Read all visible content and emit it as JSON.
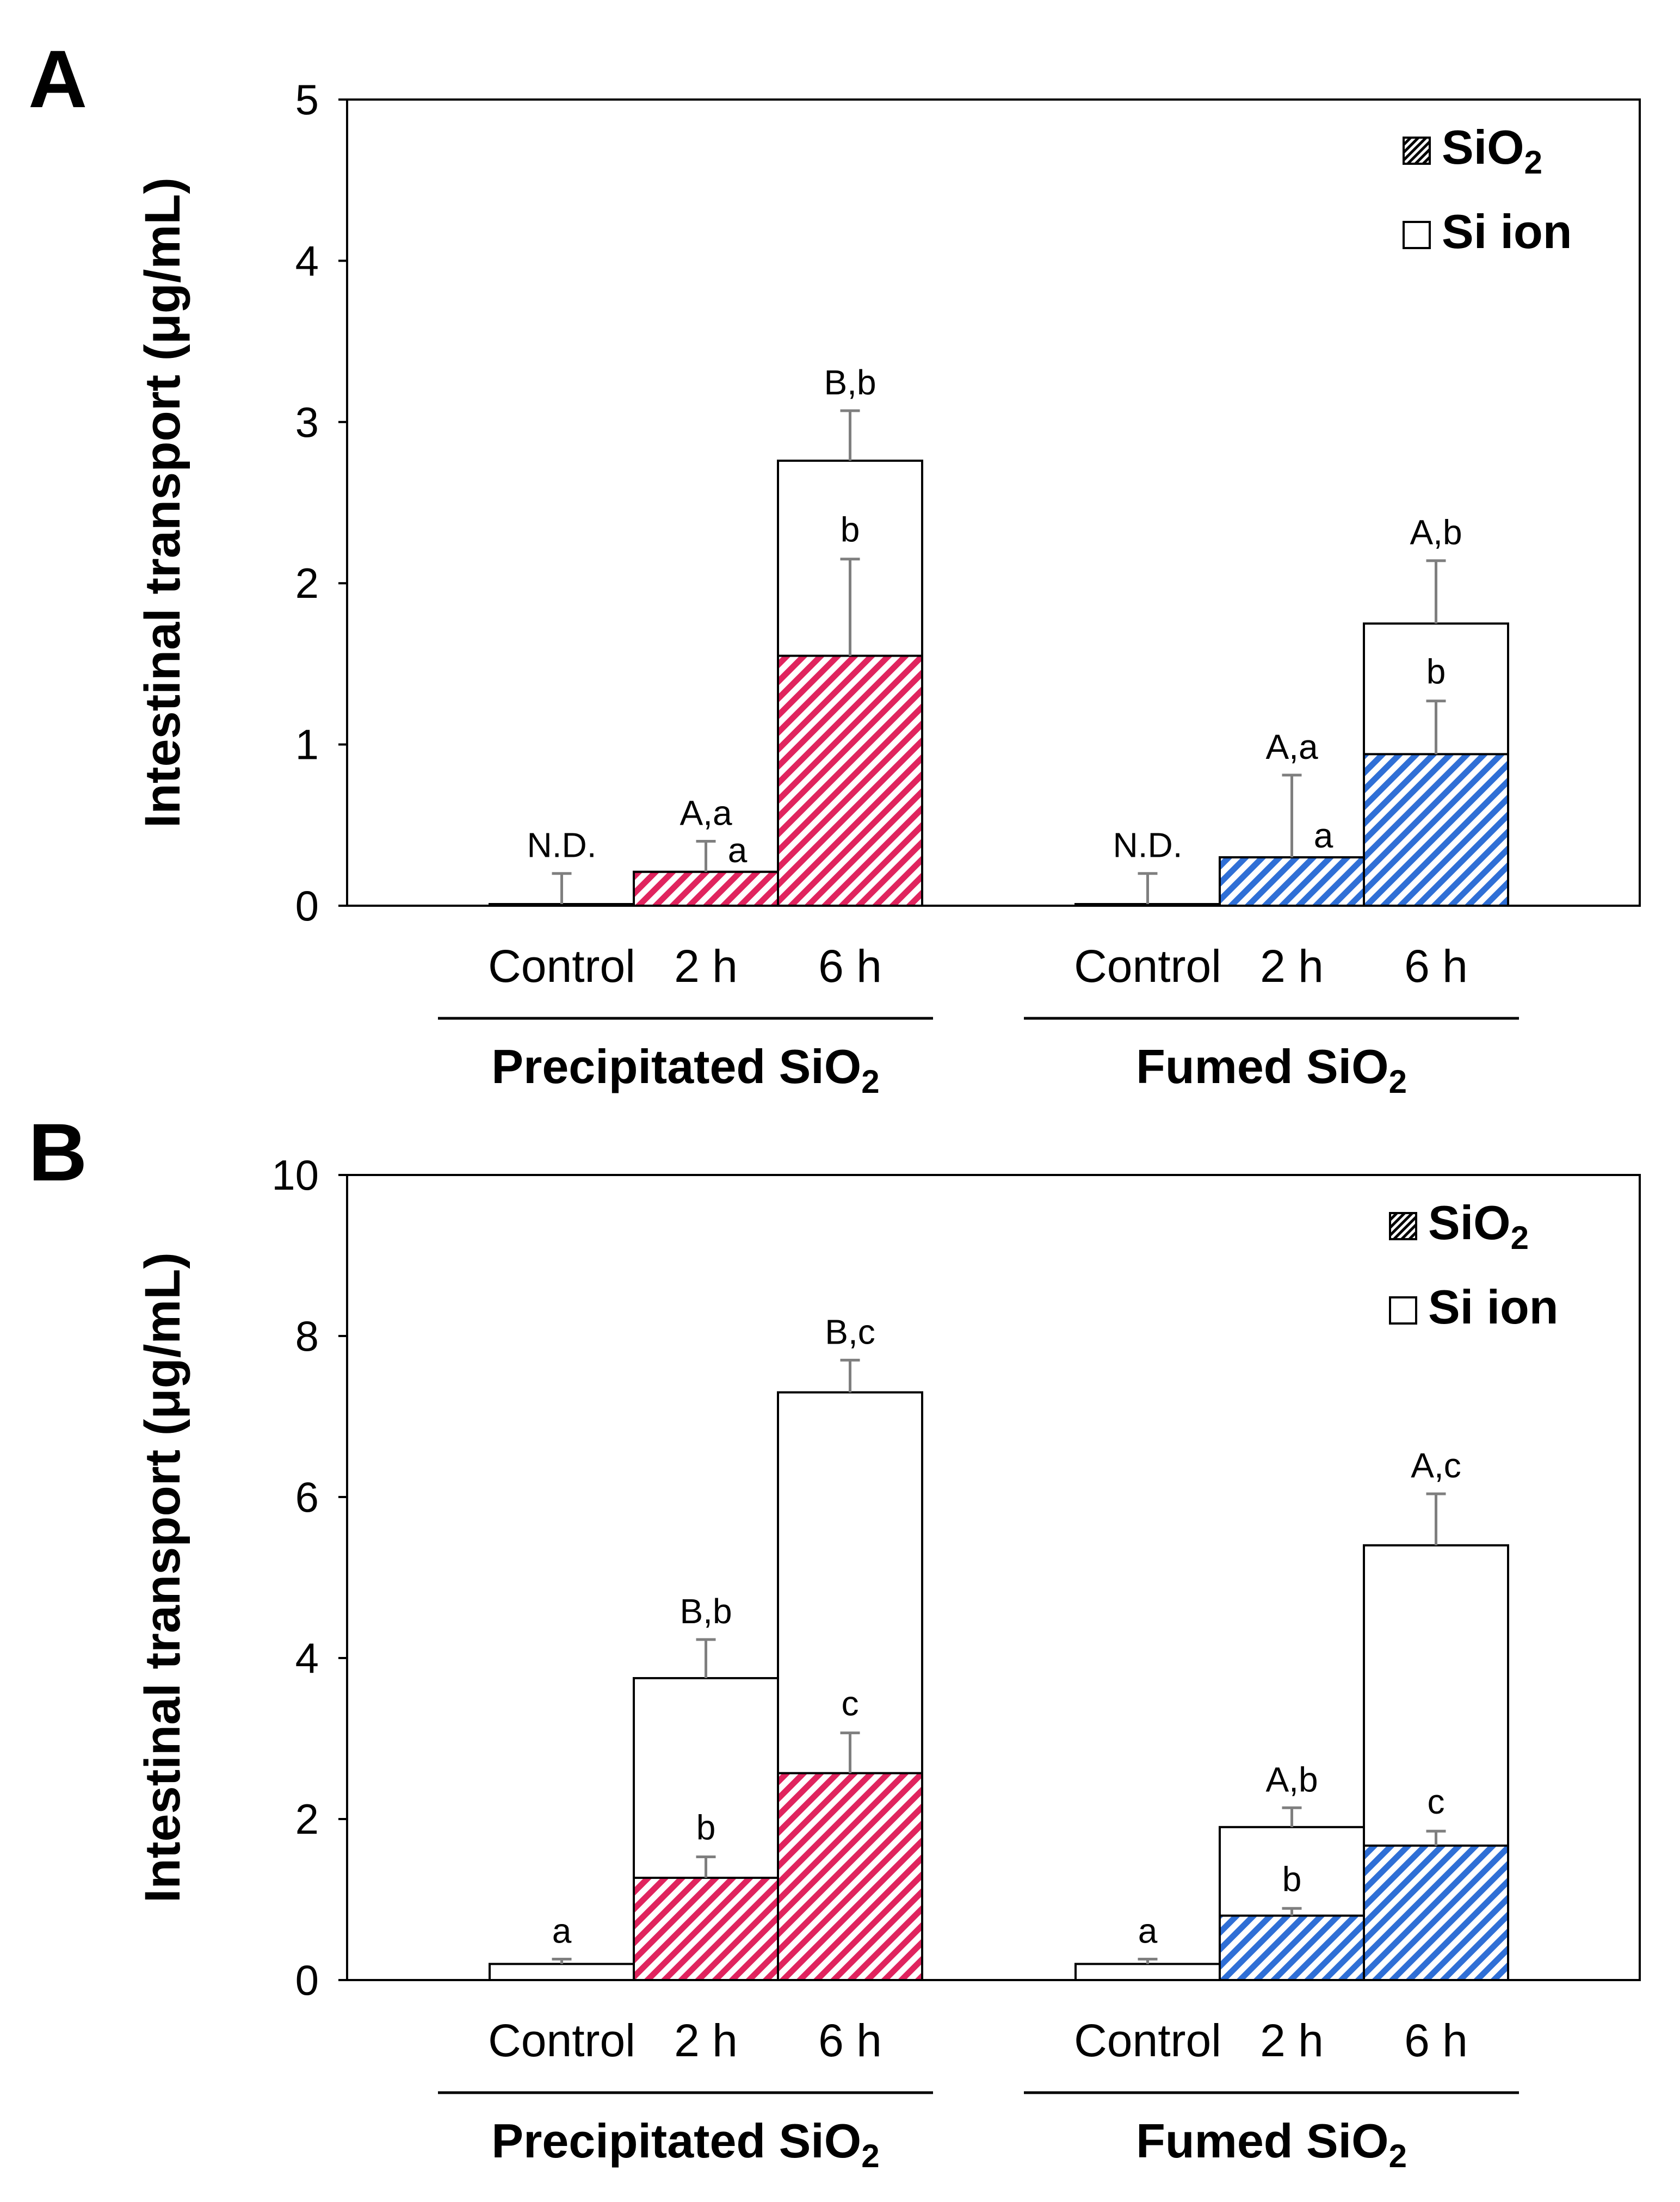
{
  "colors": {
    "precipitated": "#e0245e",
    "fumed": "#2f6fd6",
    "hatch_bg": "#ffffff",
    "axis": "#000000",
    "error_bar": "#7f7f7f"
  },
  "chart_data": [
    {
      "panel_label": "A",
      "type": "bar",
      "stacked": true,
      "ylabel": "Intestinal transport (μg/mL)",
      "ylim": [
        0,
        5
      ],
      "yticks": [
        "0",
        "1",
        "2",
        "3",
        "4",
        "5"
      ],
      "legend": {
        "position": "top-right",
        "items": [
          {
            "pattern": "hatched",
            "label": "SiO",
            "sub": "2"
          },
          {
            "pattern": "open",
            "label": "Si ion",
            "sub": ""
          }
        ]
      },
      "groups": [
        {
          "name": "Precipitated SiO",
          "sub": "2",
          "color_key": "precipitated",
          "categories": [
            "Control",
            "2 h",
            "6 h"
          ],
          "sio2": [
            0.01,
            0.21,
            1.55
          ],
          "sio2_err": [
            0,
            0,
            0.6
          ],
          "total": [
            0.01,
            0.21,
            2.76
          ],
          "total_err": [
            0.19,
            0.19,
            0.31
          ],
          "total_labels": [
            "N.D.",
            "A,a",
            "B,b"
          ],
          "inner_labels": [
            "",
            "a",
            "b"
          ]
        },
        {
          "name": "Fumed SiO",
          "sub": "2",
          "color_key": "fumed",
          "categories": [
            "Control",
            "2 h",
            "6 h"
          ],
          "sio2": [
            0.01,
            0.3,
            0.94
          ],
          "sio2_err": [
            0,
            0,
            0.33
          ],
          "total": [
            0.01,
            0.3,
            1.75
          ],
          "total_err": [
            0.19,
            0.51,
            0.39
          ],
          "total_labels": [
            "N.D.",
            "A,a",
            "A,b"
          ],
          "inner_labels": [
            "",
            "a",
            "b"
          ]
        }
      ]
    },
    {
      "panel_label": "B",
      "type": "bar",
      "stacked": true,
      "ylabel": "Intestinal transport (μg/mL)",
      "ylim": [
        0,
        10
      ],
      "yticks": [
        "0",
        "2",
        "4",
        "6",
        "8",
        "10"
      ],
      "legend": {
        "position": "top-right",
        "items": [
          {
            "pattern": "hatched",
            "label": "SiO",
            "sub": "2"
          },
          {
            "pattern": "open",
            "label": "Si ion",
            "sub": ""
          }
        ]
      },
      "groups": [
        {
          "name": "Precipitated SiO",
          "sub": "2",
          "color_key": "precipitated",
          "categories": [
            "Control",
            "2 h",
            "6 h"
          ],
          "sio2": [
            0,
            1.27,
            2.57
          ],
          "sio2_err": [
            0,
            0.26,
            0.5
          ],
          "total": [
            0.2,
            3.75,
            7.3
          ],
          "total_err": [
            0.06,
            0.48,
            0.4
          ],
          "total_labels": [
            "a",
            "B,b",
            "B,c"
          ],
          "inner_labels": [
            "",
            "b",
            "c"
          ]
        },
        {
          "name": "Fumed SiO",
          "sub": "2",
          "color_key": "fumed",
          "categories": [
            "Control",
            "2 h",
            "6 h"
          ],
          "sio2": [
            0,
            0.8,
            1.67
          ],
          "sio2_err": [
            0,
            0.09,
            0.18
          ],
          "total": [
            0.2,
            1.9,
            5.4
          ],
          "total_err": [
            0.06,
            0.24,
            0.64
          ],
          "total_labels": [
            "a",
            "A,b",
            "A,c"
          ],
          "inner_labels": [
            "",
            "b",
            "c"
          ]
        }
      ]
    }
  ]
}
